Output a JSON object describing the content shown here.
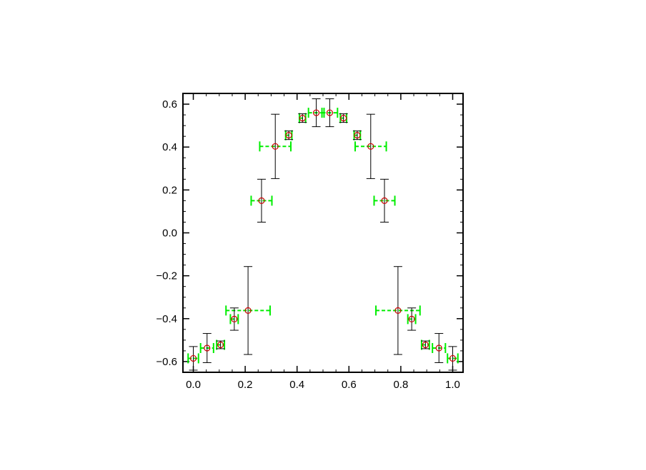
{
  "chart_data": {
    "type": "scatter",
    "title": "",
    "xlabel": "",
    "ylabel": "",
    "xlim": [
      -0.04,
      1.04
    ],
    "ylim": [
      -0.65,
      0.65
    ],
    "grid": false,
    "x_ticks": [
      0.0,
      0.2,
      0.4,
      0.6,
      0.8,
      1.0
    ],
    "x_tick_labels": [
      "0.0",
      "0.2",
      "0.4",
      "0.6",
      "0.8",
      "1.0"
    ],
    "y_ticks": [
      -0.6,
      -0.4,
      -0.2,
      0.0,
      0.2,
      0.4,
      0.6
    ],
    "y_tick_labels": [
      "−0.6",
      "−0.4",
      "−0.2",
      "0.0",
      "0.2",
      "0.4",
      "0.6"
    ],
    "x_minor_step": 0.05,
    "y_minor_step": 0.05,
    "colors": {
      "marker": "#cc0000",
      "y_error": "#000000",
      "x_error": "#00ee00",
      "axes": "#000000"
    },
    "series": [
      {
        "marker": "circle",
        "points": [
          {
            "x": 0.0,
            "y": -0.585,
            "yerr": 0.055,
            "xerr": 0.02
          },
          {
            "x": 0.053,
            "y": -0.537,
            "yerr": 0.068,
            "xerr": 0.025
          },
          {
            "x": 0.105,
            "y": -0.522,
            "yerr": 0.018,
            "xerr": 0.015
          },
          {
            "x": 0.158,
            "y": -0.402,
            "yerr": 0.052,
            "xerr": 0.015
          },
          {
            "x": 0.211,
            "y": -0.362,
            "yerr": 0.205,
            "xerr": 0.085
          },
          {
            "x": 0.263,
            "y": 0.15,
            "yerr": 0.1,
            "xerr": 0.04
          },
          {
            "x": 0.316,
            "y": 0.403,
            "yerr": 0.15,
            "xerr": 0.06
          },
          {
            "x": 0.368,
            "y": 0.455,
            "yerr": 0.02,
            "xerr": 0.012
          },
          {
            "x": 0.421,
            "y": 0.535,
            "yerr": 0.02,
            "xerr": 0.012
          },
          {
            "x": 0.474,
            "y": 0.56,
            "yerr": 0.065,
            "xerr": 0.03
          },
          {
            "x": 0.526,
            "y": 0.56,
            "yerr": 0.065,
            "xerr": 0.03
          },
          {
            "x": 0.579,
            "y": 0.535,
            "yerr": 0.02,
            "xerr": 0.012
          },
          {
            "x": 0.632,
            "y": 0.455,
            "yerr": 0.02,
            "xerr": 0.012
          },
          {
            "x": 0.684,
            "y": 0.403,
            "yerr": 0.15,
            "xerr": 0.06
          },
          {
            "x": 0.737,
            "y": 0.15,
            "yerr": 0.1,
            "xerr": 0.04
          },
          {
            "x": 0.789,
            "y": -0.362,
            "yerr": 0.205,
            "xerr": 0.085
          },
          {
            "x": 0.842,
            "y": -0.402,
            "yerr": 0.052,
            "xerr": 0.015
          },
          {
            "x": 0.895,
            "y": -0.522,
            "yerr": 0.018,
            "xerr": 0.015
          },
          {
            "x": 0.947,
            "y": -0.537,
            "yerr": 0.068,
            "xerr": 0.025
          },
          {
            "x": 1.0,
            "y": -0.585,
            "yerr": 0.055,
            "xerr": 0.02
          }
        ]
      }
    ]
  }
}
